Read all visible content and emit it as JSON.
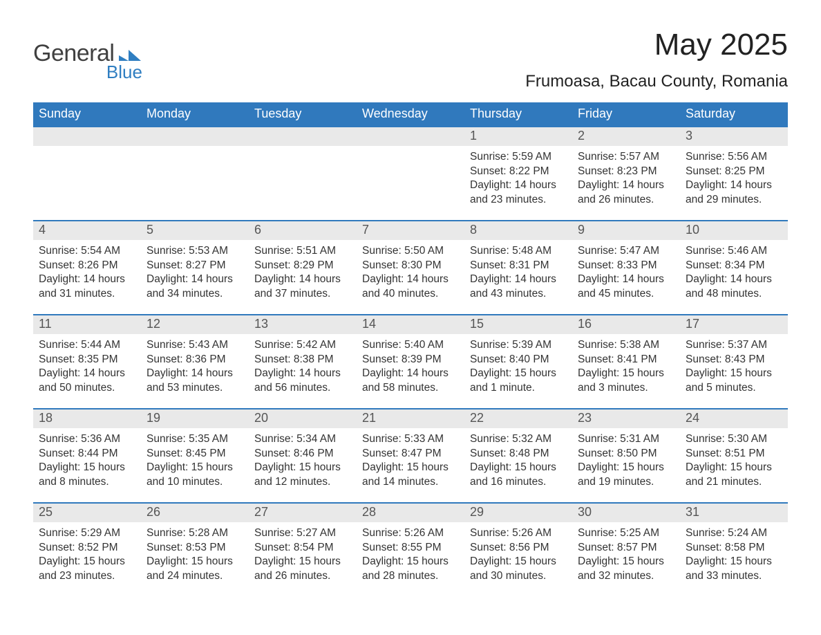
{
  "brand": {
    "general": "General",
    "blue": "Blue"
  },
  "title": "May 2025",
  "location": "Frumoasa, Bacau County, Romania",
  "colors": {
    "header_bg": "#3079bd",
    "header_text": "#ffffff",
    "daynum_bg": "#e9e9e9",
    "daynum_text": "#555555",
    "body_text": "#333333",
    "row_divider": "#3079bd",
    "logo_blue": "#2f7ec1",
    "page_bg": "#ffffff"
  },
  "fonts": {
    "title_size_pt": 33,
    "location_size_pt": 18,
    "dow_size_pt": 14,
    "daynum_size_pt": 14,
    "body_size_pt": 12
  },
  "days_of_week": [
    "Sunday",
    "Monday",
    "Tuesday",
    "Wednesday",
    "Thursday",
    "Friday",
    "Saturday"
  ],
  "weeks": [
    [
      null,
      null,
      null,
      null,
      {
        "n": "1",
        "sunrise": "Sunrise: 5:59 AM",
        "sunset": "Sunset: 8:22 PM",
        "daylight": "Daylight: 14 hours and 23 minutes."
      },
      {
        "n": "2",
        "sunrise": "Sunrise: 5:57 AM",
        "sunset": "Sunset: 8:23 PM",
        "daylight": "Daylight: 14 hours and 26 minutes."
      },
      {
        "n": "3",
        "sunrise": "Sunrise: 5:56 AM",
        "sunset": "Sunset: 8:25 PM",
        "daylight": "Daylight: 14 hours and 29 minutes."
      }
    ],
    [
      {
        "n": "4",
        "sunrise": "Sunrise: 5:54 AM",
        "sunset": "Sunset: 8:26 PM",
        "daylight": "Daylight: 14 hours and 31 minutes."
      },
      {
        "n": "5",
        "sunrise": "Sunrise: 5:53 AM",
        "sunset": "Sunset: 8:27 PM",
        "daylight": "Daylight: 14 hours and 34 minutes."
      },
      {
        "n": "6",
        "sunrise": "Sunrise: 5:51 AM",
        "sunset": "Sunset: 8:29 PM",
        "daylight": "Daylight: 14 hours and 37 minutes."
      },
      {
        "n": "7",
        "sunrise": "Sunrise: 5:50 AM",
        "sunset": "Sunset: 8:30 PM",
        "daylight": "Daylight: 14 hours and 40 minutes."
      },
      {
        "n": "8",
        "sunrise": "Sunrise: 5:48 AM",
        "sunset": "Sunset: 8:31 PM",
        "daylight": "Daylight: 14 hours and 43 minutes."
      },
      {
        "n": "9",
        "sunrise": "Sunrise: 5:47 AM",
        "sunset": "Sunset: 8:33 PM",
        "daylight": "Daylight: 14 hours and 45 minutes."
      },
      {
        "n": "10",
        "sunrise": "Sunrise: 5:46 AM",
        "sunset": "Sunset: 8:34 PM",
        "daylight": "Daylight: 14 hours and 48 minutes."
      }
    ],
    [
      {
        "n": "11",
        "sunrise": "Sunrise: 5:44 AM",
        "sunset": "Sunset: 8:35 PM",
        "daylight": "Daylight: 14 hours and 50 minutes."
      },
      {
        "n": "12",
        "sunrise": "Sunrise: 5:43 AM",
        "sunset": "Sunset: 8:36 PM",
        "daylight": "Daylight: 14 hours and 53 minutes."
      },
      {
        "n": "13",
        "sunrise": "Sunrise: 5:42 AM",
        "sunset": "Sunset: 8:38 PM",
        "daylight": "Daylight: 14 hours and 56 minutes."
      },
      {
        "n": "14",
        "sunrise": "Sunrise: 5:40 AM",
        "sunset": "Sunset: 8:39 PM",
        "daylight": "Daylight: 14 hours and 58 minutes."
      },
      {
        "n": "15",
        "sunrise": "Sunrise: 5:39 AM",
        "sunset": "Sunset: 8:40 PM",
        "daylight": "Daylight: 15 hours and 1 minute."
      },
      {
        "n": "16",
        "sunrise": "Sunrise: 5:38 AM",
        "sunset": "Sunset: 8:41 PM",
        "daylight": "Daylight: 15 hours and 3 minutes."
      },
      {
        "n": "17",
        "sunrise": "Sunrise: 5:37 AM",
        "sunset": "Sunset: 8:43 PM",
        "daylight": "Daylight: 15 hours and 5 minutes."
      }
    ],
    [
      {
        "n": "18",
        "sunrise": "Sunrise: 5:36 AM",
        "sunset": "Sunset: 8:44 PM",
        "daylight": "Daylight: 15 hours and 8 minutes."
      },
      {
        "n": "19",
        "sunrise": "Sunrise: 5:35 AM",
        "sunset": "Sunset: 8:45 PM",
        "daylight": "Daylight: 15 hours and 10 minutes."
      },
      {
        "n": "20",
        "sunrise": "Sunrise: 5:34 AM",
        "sunset": "Sunset: 8:46 PM",
        "daylight": "Daylight: 15 hours and 12 minutes."
      },
      {
        "n": "21",
        "sunrise": "Sunrise: 5:33 AM",
        "sunset": "Sunset: 8:47 PM",
        "daylight": "Daylight: 15 hours and 14 minutes."
      },
      {
        "n": "22",
        "sunrise": "Sunrise: 5:32 AM",
        "sunset": "Sunset: 8:48 PM",
        "daylight": "Daylight: 15 hours and 16 minutes."
      },
      {
        "n": "23",
        "sunrise": "Sunrise: 5:31 AM",
        "sunset": "Sunset: 8:50 PM",
        "daylight": "Daylight: 15 hours and 19 minutes."
      },
      {
        "n": "24",
        "sunrise": "Sunrise: 5:30 AM",
        "sunset": "Sunset: 8:51 PM",
        "daylight": "Daylight: 15 hours and 21 minutes."
      }
    ],
    [
      {
        "n": "25",
        "sunrise": "Sunrise: 5:29 AM",
        "sunset": "Sunset: 8:52 PM",
        "daylight": "Daylight: 15 hours and 23 minutes."
      },
      {
        "n": "26",
        "sunrise": "Sunrise: 5:28 AM",
        "sunset": "Sunset: 8:53 PM",
        "daylight": "Daylight: 15 hours and 24 minutes."
      },
      {
        "n": "27",
        "sunrise": "Sunrise: 5:27 AM",
        "sunset": "Sunset: 8:54 PM",
        "daylight": "Daylight: 15 hours and 26 minutes."
      },
      {
        "n": "28",
        "sunrise": "Sunrise: 5:26 AM",
        "sunset": "Sunset: 8:55 PM",
        "daylight": "Daylight: 15 hours and 28 minutes."
      },
      {
        "n": "29",
        "sunrise": "Sunrise: 5:26 AM",
        "sunset": "Sunset: 8:56 PM",
        "daylight": "Daylight: 15 hours and 30 minutes."
      },
      {
        "n": "30",
        "sunrise": "Sunrise: 5:25 AM",
        "sunset": "Sunset: 8:57 PM",
        "daylight": "Daylight: 15 hours and 32 minutes."
      },
      {
        "n": "31",
        "sunrise": "Sunrise: 5:24 AM",
        "sunset": "Sunset: 8:58 PM",
        "daylight": "Daylight: 15 hours and 33 minutes."
      }
    ]
  ]
}
